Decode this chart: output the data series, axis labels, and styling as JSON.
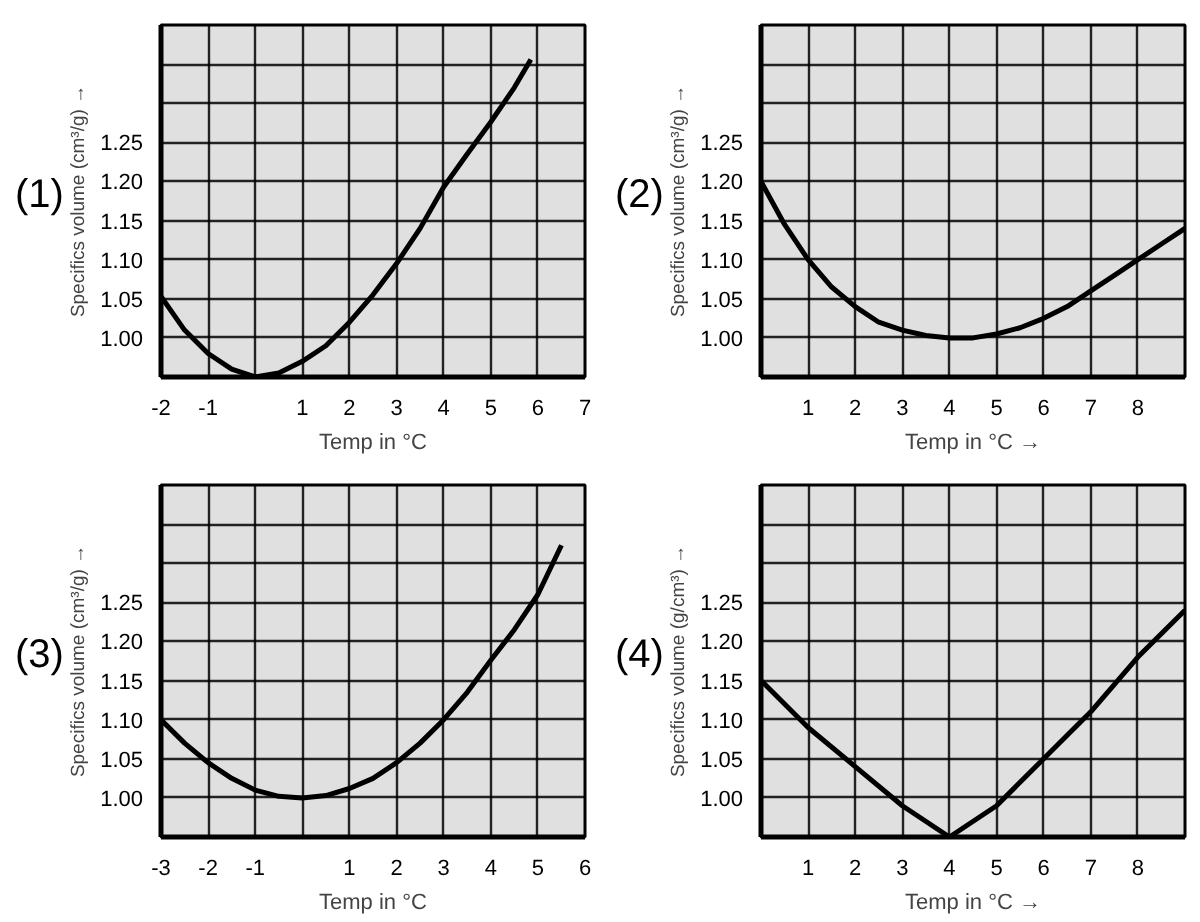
{
  "chart_data": [
    {
      "type": "line",
      "title": "(1)",
      "xlabel": "Temp in °C",
      "ylabel": "Specifics volume (cm³/g) →",
      "xlim": [
        -2,
        7
      ],
      "ylim": [
        0.95,
        1.4
      ],
      "xticks": [
        -2,
        -1,
        {
          "value": 0,
          "label": null
        },
        1,
        2,
        3,
        4,
        5,
        6,
        7
      ],
      "yticks": [
        {
          "value": 1.0,
          "label": "1.00"
        },
        {
          "value": 1.05,
          "label": "1.05"
        },
        {
          "value": 1.1,
          "label": "1.10"
        },
        {
          "value": 1.15,
          "label": "1.15"
        },
        {
          "value": 1.2,
          "label": "1.20"
        },
        {
          "value": 1.25,
          "label": "1.25"
        },
        {
          "value": 1.3,
          "label": null
        },
        {
          "value": 1.35,
          "label": null
        }
      ],
      "grid": true,
      "series": [
        {
          "color": "#000000",
          "x": [
            -2,
            -1.5,
            -1,
            -0.5,
            0,
            0.5,
            1,
            1.5,
            2,
            2.5,
            3,
            3.5,
            4,
            4.5,
            5,
            5.5,
            5.85
          ],
          "values": [
            1.053,
            1.01,
            0.98,
            0.96,
            0.95,
            0.955,
            0.97,
            0.99,
            1.02,
            1.055,
            1.095,
            1.14,
            1.193,
            1.235,
            1.276,
            1.32,
            1.356
          ]
        }
      ]
    },
    {
      "type": "line",
      "title": "(2)",
      "xlabel": "Temp in °C →",
      "ylabel": "Specifics volume (cm³/g) →",
      "xlim": [
        0,
        9
      ],
      "ylim": [
        0.95,
        1.4
      ],
      "xticks": [
        1,
        2,
        3,
        4,
        5,
        6,
        7,
        8
      ],
      "yticks": [
        {
          "value": 1.0,
          "label": "1.00"
        },
        {
          "value": 1.05,
          "label": "1.05"
        },
        {
          "value": 1.1,
          "label": "1.10"
        },
        {
          "value": 1.15,
          "label": "1.15"
        },
        {
          "value": 1.2,
          "label": "1.20"
        },
        {
          "value": 1.25,
          "label": "1.25"
        },
        {
          "value": 1.3,
          "label": null
        },
        {
          "value": 1.35,
          "label": null
        }
      ],
      "grid": true,
      "series": [
        {
          "color": "#000000",
          "x": [
            0,
            0.5,
            1,
            1.5,
            2,
            2.5,
            3,
            3.5,
            4,
            4.5,
            5,
            5.5,
            6,
            6.5,
            7,
            7.5,
            8,
            8.5,
            9
          ],
          "values": [
            1.2,
            1.145,
            1.1,
            1.065,
            1.04,
            1.02,
            1.01,
            1.003,
            1.0,
            1.0,
            1.005,
            1.013,
            1.025,
            1.04,
            1.06,
            1.08,
            1.1,
            1.12,
            1.14
          ]
        }
      ]
    },
    {
      "type": "line",
      "title": "(3)",
      "xlabel": "Temp in °C",
      "ylabel": "Specifics volume (cm³/g) →",
      "xlim": [
        -3,
        6
      ],
      "ylim": [
        0.95,
        1.4
      ],
      "xticks": [
        -3,
        -2,
        -1,
        {
          "value": 0,
          "label": null
        },
        1,
        2,
        3,
        4,
        5,
        6
      ],
      "yticks": [
        {
          "value": 1.0,
          "label": "1.00"
        },
        {
          "value": 1.05,
          "label": "1.05"
        },
        {
          "value": 1.1,
          "label": "1.10"
        },
        {
          "value": 1.15,
          "label": "1.15"
        },
        {
          "value": 1.2,
          "label": "1.20"
        },
        {
          "value": 1.25,
          "label": "1.25"
        },
        {
          "value": 1.3,
          "label": null
        },
        {
          "value": 1.35,
          "label": null
        }
      ],
      "grid": true,
      "series": [
        {
          "color": "#000000",
          "x": [
            -3,
            -2.5,
            -2,
            -1.5,
            -1,
            -0.5,
            0,
            0.5,
            1,
            1.5,
            2,
            2.5,
            3,
            3.5,
            4,
            4.5,
            5,
            5.5
          ],
          "values": [
            1.1,
            1.07,
            1.045,
            1.025,
            1.01,
            1.002,
            1.0,
            1.003,
            1.012,
            1.025,
            1.045,
            1.07,
            1.1,
            1.135,
            1.176,
            1.215,
            1.26,
            1.323
          ]
        }
      ]
    },
    {
      "type": "line",
      "title": "(4)",
      "xlabel": "Temp in °C →",
      "ylabel": "Specifics volume (g/cm³) →",
      "xlim": [
        0,
        9
      ],
      "ylim": [
        0.95,
        1.4
      ],
      "xticks": [
        1,
        2,
        3,
        4,
        5,
        6,
        7,
        8
      ],
      "yticks": [
        {
          "value": 1.0,
          "label": "1.00"
        },
        {
          "value": 1.05,
          "label": "1.05"
        },
        {
          "value": 1.1,
          "label": "1.10"
        },
        {
          "value": 1.15,
          "label": "1.15"
        },
        {
          "value": 1.2,
          "label": "1.20"
        },
        {
          "value": 1.25,
          "label": "1.25"
        },
        {
          "value": 1.3,
          "label": null
        },
        {
          "value": 1.35,
          "label": null
        }
      ],
      "grid": true,
      "series": [
        {
          "color": "#000000",
          "x": [
            0,
            1,
            2,
            3,
            4,
            5,
            6,
            7,
            8,
            9
          ],
          "values": [
            1.15,
            1.09,
            1.04,
            0.99,
            0.95,
            0.99,
            1.05,
            1.11,
            1.18,
            1.24
          ]
        }
      ]
    }
  ]
}
